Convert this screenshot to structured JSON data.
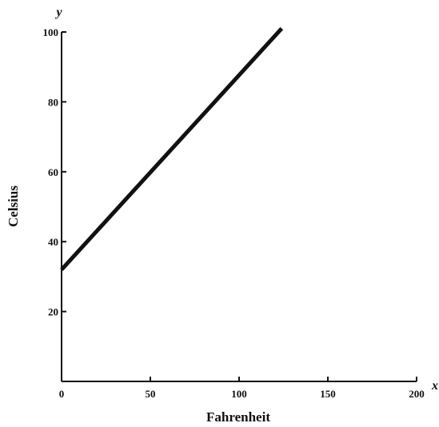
{
  "chart_data": {
    "type": "line",
    "xlabel": "Fahrenheit",
    "ylabel": "Celsius",
    "x_axis_symbol": "x",
    "y_axis_symbol": "y",
    "xlim": [
      0,
      200
    ],
    "ylim": [
      0,
      100
    ],
    "x_ticks": [
      0,
      50,
      100,
      150,
      200
    ],
    "y_ticks": [
      20,
      40,
      60,
      80,
      100
    ],
    "x_tick_labels": [
      "0",
      "50",
      "100",
      "150",
      "200"
    ],
    "y_tick_labels": [
      "20",
      "40",
      "60",
      "80",
      "100"
    ],
    "grid": false,
    "series": [
      {
        "x": [
          0,
          124
        ],
        "y": [
          32,
          101
        ]
      }
    ],
    "colors": {
      "line": "#111111",
      "axis": "#111111"
    }
  }
}
